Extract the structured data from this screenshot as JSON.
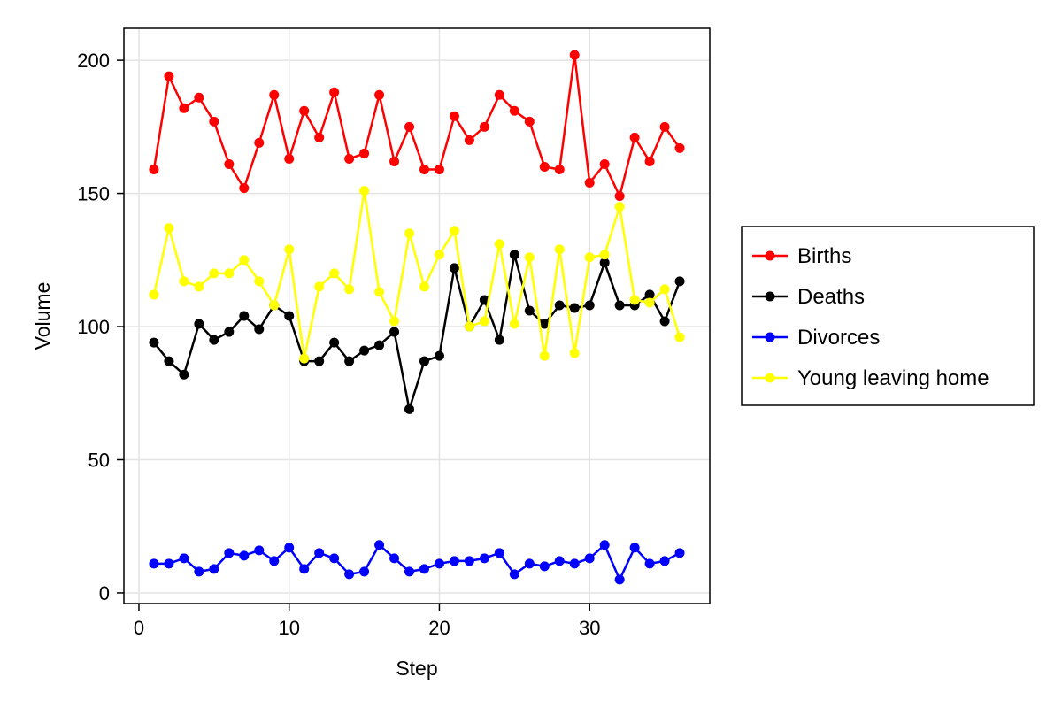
{
  "chart_data": {
    "type": "line",
    "title": "",
    "xlabel": "Step",
    "ylabel": "Volume",
    "xlim": [
      -1,
      38
    ],
    "ylim": [
      -4,
      212
    ],
    "x_ticks": [
      0,
      10,
      20,
      30
    ],
    "y_ticks": [
      0,
      50,
      100,
      150,
      200
    ],
    "grid": true,
    "legend_position": "right",
    "x": [
      1,
      2,
      3,
      4,
      5,
      6,
      7,
      8,
      9,
      10,
      11,
      12,
      13,
      14,
      15,
      16,
      17,
      18,
      19,
      20,
      21,
      22,
      23,
      24,
      25,
      26,
      27,
      28,
      29,
      30,
      31,
      32,
      33,
      34,
      35,
      36
    ],
    "series": [
      {
        "name": "Births",
        "color": "#ff0000",
        "values": [
          159,
          194,
          182,
          186,
          177,
          161,
          152,
          169,
          187,
          163,
          181,
          171,
          188,
          163,
          165,
          187,
          162,
          175,
          159,
          159,
          179,
          170,
          175,
          187,
          181,
          177,
          160,
          159,
          202,
          154,
          161,
          149,
          171,
          162,
          175,
          167
        ]
      },
      {
        "name": "Deaths",
        "color": "#000000",
        "values": [
          94,
          87,
          82,
          101,
          95,
          98,
          104,
          99,
          108,
          104,
          87,
          87,
          94,
          87,
          91,
          93,
          98,
          69,
          87,
          89,
          122,
          100,
          110,
          95,
          127,
          106,
          101,
          108,
          107,
          108,
          124,
          108,
          108,
          112,
          102,
          117
        ]
      },
      {
        "name": "Divorces",
        "color": "#0000ff",
        "values": [
          11,
          11,
          13,
          8,
          9,
          15,
          14,
          16,
          12,
          17,
          9,
          15,
          13,
          7,
          8,
          18,
          13,
          8,
          9,
          11,
          12,
          12,
          13,
          15,
          7,
          11,
          10,
          12,
          11,
          13,
          18,
          5,
          17,
          11,
          12,
          15
        ]
      },
      {
        "name": "Young leaving home",
        "color": "#ffff00",
        "values": [
          112,
          137,
          117,
          115,
          120,
          120,
          125,
          117,
          108,
          129,
          88,
          115,
          120,
          114,
          151,
          113,
          102,
          135,
          115,
          127,
          136,
          100,
          102,
          131,
          101,
          126,
          89,
          129,
          90,
          126,
          127,
          145,
          110,
          109,
          114,
          96
        ]
      }
    ]
  }
}
